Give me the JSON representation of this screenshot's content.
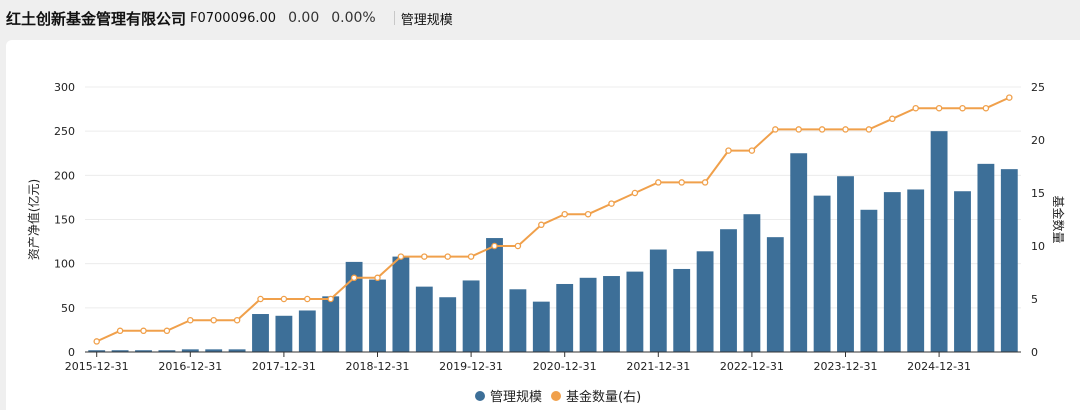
{
  "header": {
    "company_name": "红土创新基金管理有限公司",
    "code": "F0700096.00",
    "price": "0.00",
    "change_pct": "0.00%",
    "tab_label": "管理规模"
  },
  "colors": {
    "bar": "#3d6f98",
    "line": "#f0a04b",
    "grid": "#ececec"
  },
  "chart_data": {
    "type": "bar",
    "xlabel": "",
    "ylabel": "资产净值(亿元)",
    "y2label": "基金数量",
    "ylim": [
      0,
      300
    ],
    "y2lim": [
      0,
      25
    ],
    "yticks": [
      0,
      50,
      100,
      150,
      200,
      250,
      300
    ],
    "y2ticks": [
      0,
      5,
      10,
      15,
      20,
      25
    ],
    "grid": true,
    "legend_position": "bottom-center",
    "x": [
      "2015-12-31",
      "2016-03-31",
      "2016-06-30",
      "2016-09-30",
      "2016-12-31",
      "2017-03-31",
      "2017-06-30",
      "2017-09-30",
      "2017-12-31",
      "2018-03-31",
      "2018-06-30",
      "2018-09-30",
      "2018-12-31",
      "2019-03-31",
      "2019-06-30",
      "2019-09-30",
      "2019-12-31",
      "2020-03-31",
      "2020-06-30",
      "2020-09-30",
      "2020-12-31",
      "2021-03-31",
      "2021-06-30",
      "2021-09-30",
      "2021-12-31",
      "2022-03-31",
      "2022-06-30",
      "2022-09-30",
      "2022-12-31",
      "2023-03-31",
      "2023-06-30",
      "2023-09-30",
      "2023-12-31",
      "2024-03-31",
      "2024-06-30",
      "2024-09-30",
      "2024-12-31",
      "2025-03-31",
      "2025-06-30",
      "2025-09-30"
    ],
    "x_tick_labels": [
      "2015-12-31",
      "2016-12-31",
      "2017-12-31",
      "2018-12-31",
      "2019-12-31",
      "2020-12-31",
      "2021-12-31",
      "2022-12-31",
      "2023-12-31",
      "2024-12-31"
    ],
    "series": [
      {
        "name": "管理规模",
        "type": "bar",
        "axis": "left",
        "values": [
          2,
          2,
          2,
          2,
          3,
          3,
          3,
          43,
          41,
          47,
          63,
          102,
          82,
          108,
          74,
          62,
          81,
          129,
          71,
          57,
          77,
          84,
          86,
          91,
          116,
          94,
          114,
          139,
          156,
          130,
          225,
          177,
          199,
          161,
          181,
          184,
          250,
          182,
          213,
          207
        ]
      },
      {
        "name": "基金数量(右)",
        "type": "line",
        "axis": "right",
        "values": [
          1,
          2,
          2,
          2,
          3,
          3,
          3,
          5,
          5,
          5,
          5,
          7,
          7,
          9,
          9,
          9,
          9,
          10,
          10,
          12,
          13,
          13,
          14,
          15,
          16,
          16,
          16,
          19,
          19,
          21,
          21,
          21,
          21,
          21,
          22,
          23,
          23,
          23,
          23,
          24
        ]
      }
    ]
  }
}
